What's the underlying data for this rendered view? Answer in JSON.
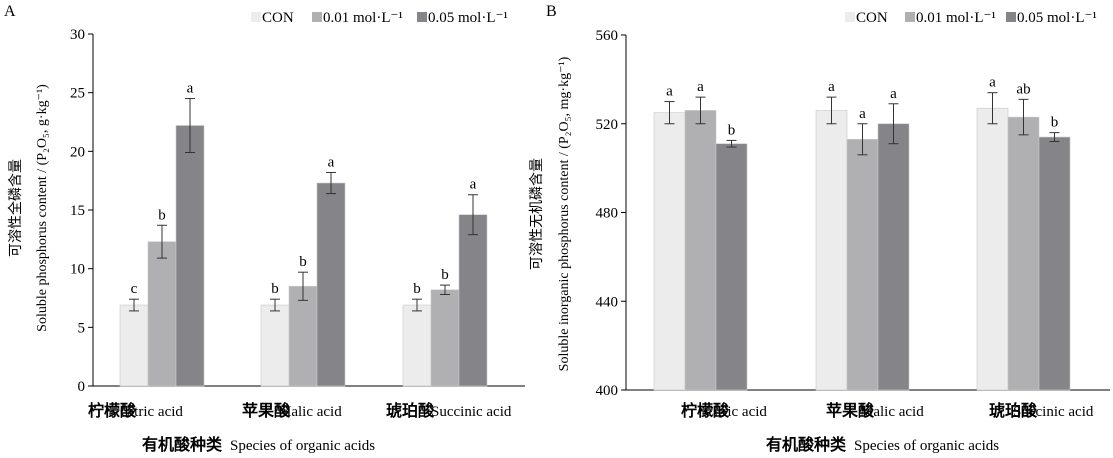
{
  "figure": {
    "legend": [
      "CON",
      "0.01 mol·L⁻¹",
      "0.05 mol·L⁻¹"
    ],
    "series_colors": [
      "#ececec",
      "#b0b0b2",
      "#858589"
    ],
    "xlabel_cn": "有机酸种类",
    "xlabel_en": "Species of organic acids"
  },
  "chart_data": [
    {
      "type": "bar",
      "panel": "A",
      "categories_cn": [
        "柠檬酸",
        "苹果酸",
        "琥珀酸"
      ],
      "categories": [
        "Citric acid",
        "Malic acid",
        "Succinic acid"
      ],
      "ylabel_cn": "可溶性全磷含量",
      "ylabel_en": "Soluble phosphorus content / (P₂O₅, g·kg⁻¹)",
      "ylim": [
        0,
        30
      ],
      "yticks": [
        0,
        5,
        10,
        15,
        20,
        25,
        30
      ],
      "series": [
        {
          "name": "CON",
          "values": [
            6.9,
            6.9,
            6.9
          ],
          "errors": [
            0.5,
            0.5,
            0.5
          ],
          "sig": [
            "c",
            "b",
            "b"
          ]
        },
        {
          "name": "0.01 mol·L⁻¹",
          "values": [
            12.3,
            8.5,
            8.2
          ],
          "errors": [
            1.4,
            1.2,
            0.4
          ],
          "sig": [
            "b",
            "b",
            "b"
          ]
        },
        {
          "name": "0.05 mol·L⁻¹",
          "values": [
            22.2,
            17.3,
            14.6
          ],
          "errors": [
            2.3,
            0.9,
            1.7
          ],
          "sig": [
            "a",
            "a",
            "a"
          ]
        }
      ]
    },
    {
      "type": "bar",
      "panel": "B",
      "categories_cn": [
        "柠檬酸",
        "苹果酸",
        "琥珀酸"
      ],
      "categories": [
        "Citric acid",
        "Malic acid",
        "Succinic acid"
      ],
      "ylabel_cn": "可溶性无机磷含量",
      "ylabel_en": "Soluble inorganic phosphorus content / (P₂O₅, mg·kg⁻¹)",
      "ylim": [
        400,
        560
      ],
      "yticks": [
        400,
        440,
        480,
        520,
        560
      ],
      "series": [
        {
          "name": "CON",
          "values": [
            525,
            526,
            527
          ],
          "errors": [
            5,
            6,
            7
          ],
          "sig": [
            "a",
            "a",
            "a"
          ]
        },
        {
          "name": "0.01 mol·L⁻¹",
          "values": [
            526,
            513,
            523
          ],
          "errors": [
            6,
            7,
            8
          ],
          "sig": [
            "a",
            "a",
            "ab"
          ]
        },
        {
          "name": "0.05 mol·L⁻¹",
          "values": [
            511,
            520,
            514
          ],
          "errors": [
            1.5,
            9,
            2
          ],
          "sig": [
            "b",
            "a",
            "b"
          ]
        }
      ]
    }
  ]
}
